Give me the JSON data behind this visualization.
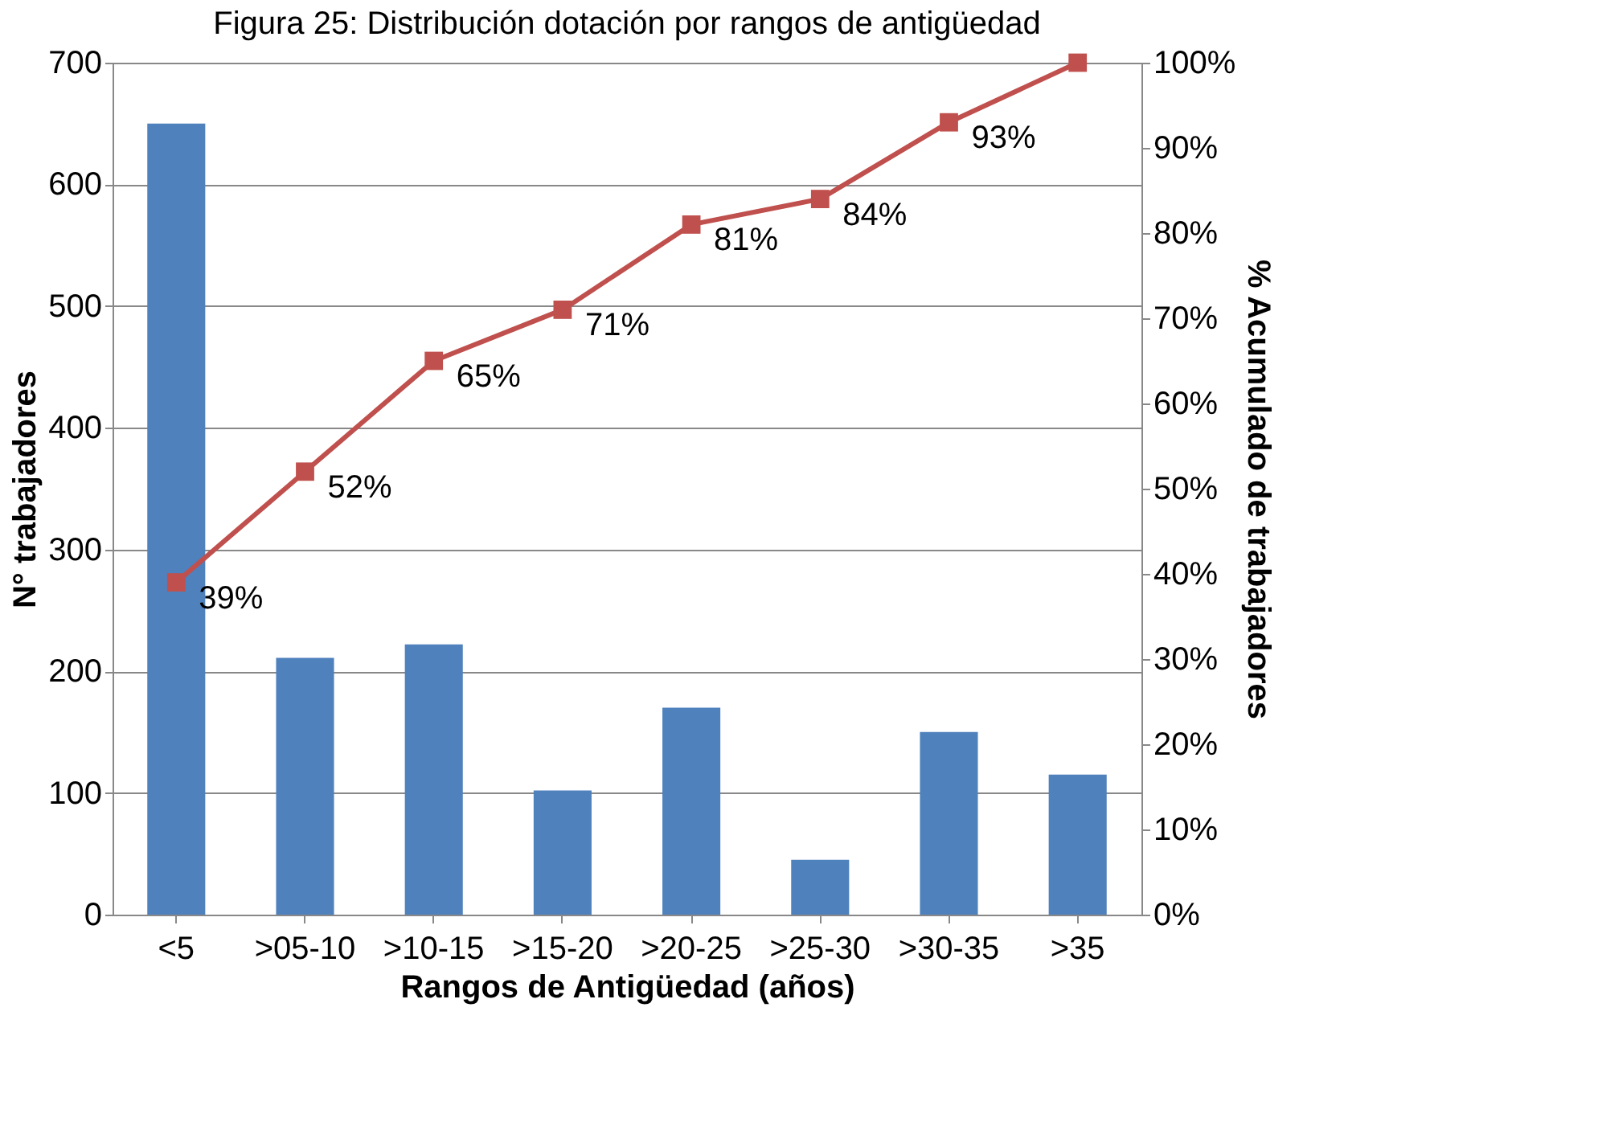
{
  "chart_data": {
    "type": "bar",
    "title": "Figura 25: Distribución dotación por rangos de antigüedad",
    "xlabel": "Rangos de Antigüedad (años)",
    "ylabel": "N° trabajadores",
    "y2label": "% Acumulado de trabajadores",
    "categories": [
      "<5",
      ">05-10",
      ">10-15",
      ">15-20",
      ">20-25",
      ">25-30",
      ">30-35",
      ">35"
    ],
    "series": [
      {
        "color": "#4f81bd",
        "values": [
          650,
          211,
          222,
          102,
          170,
          45,
          150,
          115
        ]
      },
      {
        "type": "line",
        "axis": "y2",
        "color": "#c0504d",
        "marker": "square",
        "values": [
          39,
          52,
          65,
          71,
          81,
          84,
          93,
          100
        ],
        "value_labels": [
          "39%",
          "52%",
          "65%",
          "71%",
          "81%",
          "84%",
          "93%",
          null
        ]
      }
    ],
    "ylim": [
      0,
      700
    ],
    "yticks": [
      0,
      100,
      200,
      300,
      400,
      500,
      600,
      700
    ],
    "y2lim": [
      0,
      100
    ],
    "y2ticks": [
      {
        "value": 0,
        "label": "0%"
      },
      {
        "value": 10,
        "label": "10%"
      },
      {
        "value": 20,
        "label": "20%"
      },
      {
        "value": 30,
        "label": "30%"
      },
      {
        "value": 40,
        "label": "40%"
      },
      {
        "value": 50,
        "label": "50%"
      },
      {
        "value": 60,
        "label": "60%"
      },
      {
        "value": 70,
        "label": "70%"
      },
      {
        "value": 80,
        "label": "80%"
      },
      {
        "value": 90,
        "label": "90%"
      },
      {
        "value": 100,
        "label": "100%"
      }
    ],
    "grid": "y"
  }
}
